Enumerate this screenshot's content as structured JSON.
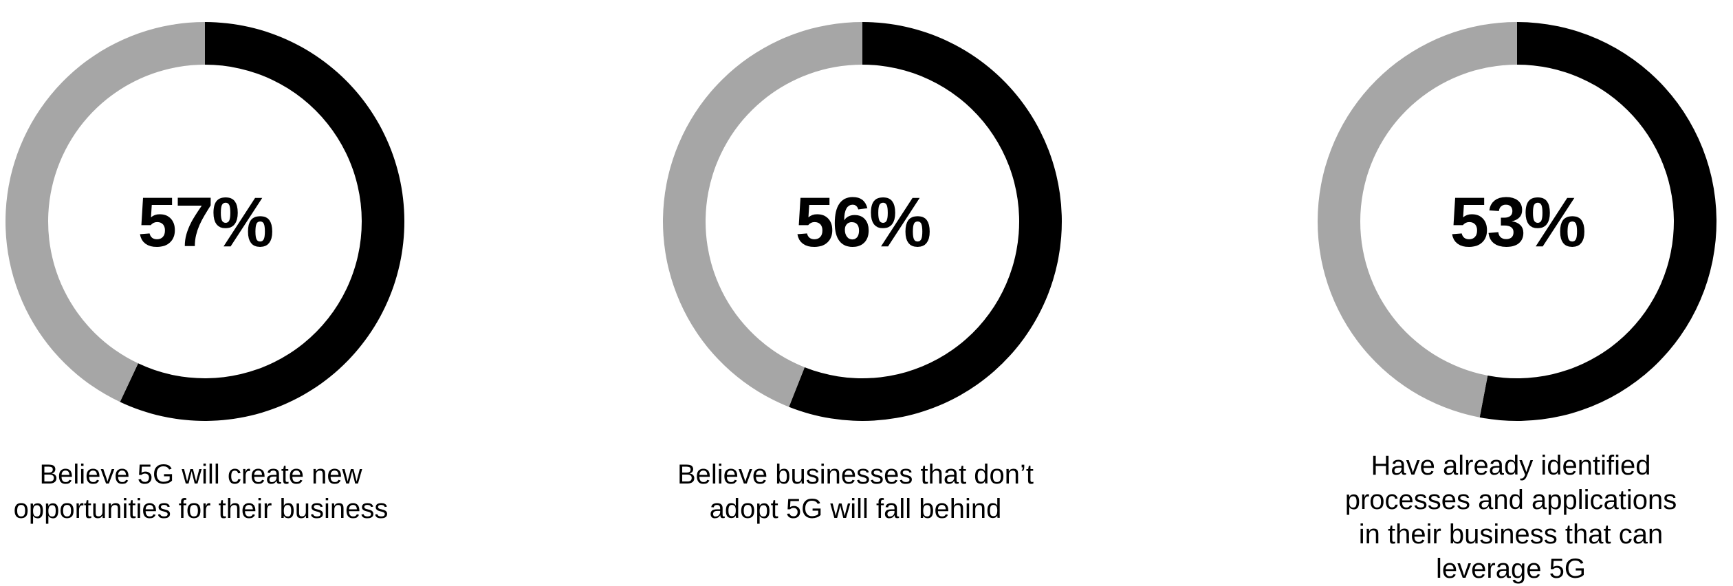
{
  "colors": {
    "highlight": "#000000",
    "remainder": "#a6a6a6",
    "background": "#ffffff"
  },
  "chart_data": [
    {
      "type": "pie",
      "variant": "donut",
      "value": 57,
      "unit": "%",
      "center_label": "57%",
      "caption_lines": [
        "Believe 5G will create new",
        "opportunities for their business"
      ],
      "slices": [
        {
          "label": "",
          "value": 57,
          "color": "#000000"
        },
        {
          "label": "",
          "value": 43,
          "color": "#a6a6a6"
        }
      ]
    },
    {
      "type": "pie",
      "variant": "donut",
      "value": 56,
      "unit": "%",
      "center_label": "56%",
      "caption_lines": [
        "Believe businesses that don’t",
        "adopt 5G will fall behind"
      ],
      "slices": [
        {
          "label": "",
          "value": 56,
          "color": "#000000"
        },
        {
          "label": "",
          "value": 44,
          "color": "#a6a6a6"
        }
      ]
    },
    {
      "type": "pie",
      "variant": "donut",
      "value": 53,
      "unit": "%",
      "center_label": "53%",
      "caption_lines": [
        "Have already identified",
        "processes and applications",
        "in their business that can",
        "leverage 5G"
      ],
      "slices": [
        {
          "label": "",
          "value": 53,
          "color": "#000000"
        },
        {
          "label": "",
          "value": 47,
          "color": "#a6a6a6"
        }
      ]
    }
  ]
}
